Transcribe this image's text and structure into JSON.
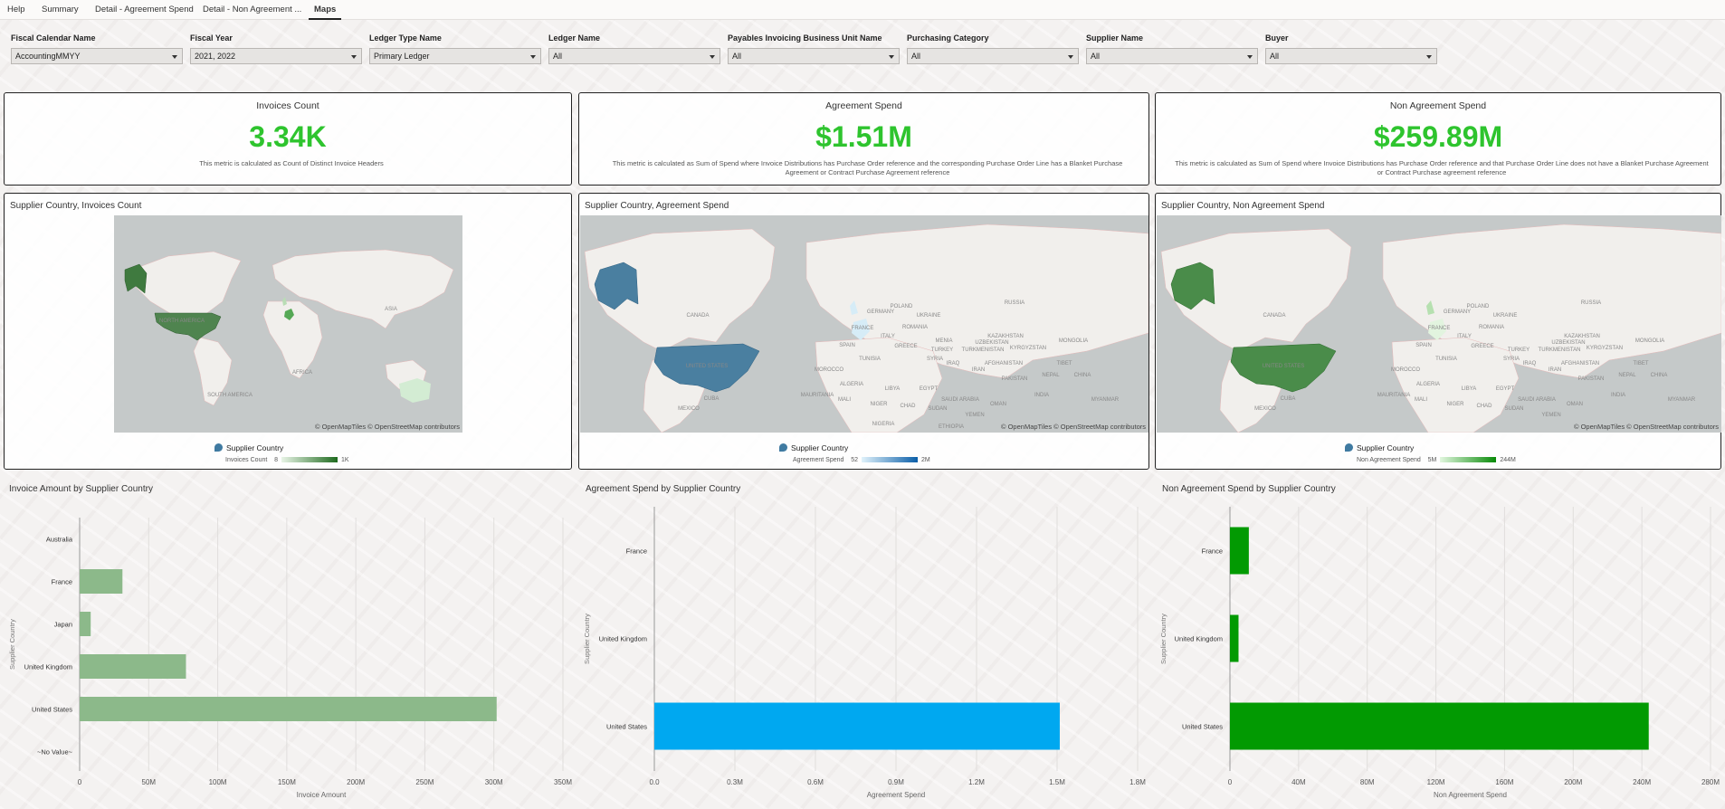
{
  "tabs": [
    {
      "label": "Help",
      "active": false
    },
    {
      "label": "Summary",
      "active": false
    },
    {
      "label": "Detail - Agreement Spend",
      "active": false
    },
    {
      "label": "Detail - Non Agreement ...",
      "active": false
    },
    {
      "label": "Maps",
      "active": true
    }
  ],
  "filters": [
    {
      "label": "Fiscal Calendar Name",
      "value": "AccountingMMYY"
    },
    {
      "label": "Fiscal Year",
      "value": "2021, 2022"
    },
    {
      "label": "Ledger Type Name",
      "value": "Primary Ledger"
    },
    {
      "label": "Ledger Name",
      "value": "All"
    },
    {
      "label": "Payables Invoicing Business Unit Name",
      "value": "All"
    },
    {
      "label": "Purchasing Category",
      "value": "All"
    },
    {
      "label": "Supplier Name",
      "value": "All"
    },
    {
      "label": "Buyer",
      "value": "All"
    }
  ],
  "metrics": [
    {
      "title": "Invoices Count",
      "value": "3.34K",
      "description": "This metric is calculated as Count of Distinct Invoice Headers"
    },
    {
      "title": "Agreement Spend",
      "value": "$1.51M",
      "description": "This metric is calculated as Sum of Spend where Invoice Distributions has Purchase Order reference and the corresponding Purchase Order Line has a Blanket Purchase Agreement or Contract Purchase Agreement reference"
    },
    {
      "title": "Non Agreement Spend",
      "value": "$259.89M",
      "description": "This metric is calculated as Sum of Spend where Invoice Distributions has Purchase Order reference and that Purchase Order Line does not have a Blanket Purchase Agreement or Contract Purchase agreement reference"
    }
  ],
  "maps": [
    {
      "title": "Supplier Country, Invoices Count",
      "attribution": "© OpenMapTiles  © OpenStreetMap contributors",
      "legend_label": "Supplier Country",
      "gradient_label": "Invoices Count",
      "gradient_min": "8",
      "gradient_max": "1K",
      "color": "#3f7a3f",
      "labels": [
        "NORTH AMERICA",
        "AFRICA",
        "ASIA",
        "SOUTH AMERICA"
      ]
    },
    {
      "title": "Supplier Country, Agreement Spend",
      "attribution": "© OpenMapTiles  © OpenStreetMap contributors",
      "legend_label": "Supplier Country",
      "gradient_label": "Agreement Spend",
      "gradient_min": "52",
      "gradient_max": "2M",
      "color": "#3f7aa1",
      "labels": [
        "CANADA",
        "RUSSIA",
        "UNITED STATES",
        "KAZAKHSTAN",
        "MONGOLIA",
        "CHINA",
        "ALGERIA",
        "LIBYA",
        "EGYPT",
        "MEXICO",
        "IRAN",
        "AFGHANISTAN",
        "PAKISTAN",
        "INDIA",
        "SAUDI ARABIA",
        "NIGER",
        "MALI",
        "CHAD",
        "SUDAN",
        "ETHIOPIA",
        "MOROCCO",
        "TURKEY",
        "FRANCE",
        "GERMANY",
        "POLAND",
        "UKRAINE",
        "SPAIN",
        "MAURITANIA",
        "NIGERIA",
        "YEMEN",
        "OMAN",
        "CUBA",
        "MYANMAR",
        "TIBET",
        "NEPAL",
        "IRAQ",
        "MENIA",
        "TURKMENISTAN",
        "UZBEKISTAN",
        "KYRGYZSTAN",
        "SYRIA",
        "ITALY",
        "GREECE",
        "ROMANIA",
        "TUNISIA"
      ]
    },
    {
      "title": "Supplier Country, Non Agreement Spend",
      "attribution": "© OpenMapTiles  © OpenStreetMap contributors",
      "legend_label": "Supplier Country",
      "gradient_label": "Non Agreement Spend",
      "gradient_min": "5M",
      "gradient_max": "244M",
      "color": "#3f8a3f",
      "labels": [
        "CANADA",
        "RUSSIA",
        "UNITED STATES",
        "KAZAKHSTAN",
        "MONGOLIA",
        "CHINA",
        "ALGERIA",
        "LIBYA",
        "EGYPT",
        "MEXICO",
        "IRAN",
        "AFGHANISTAN",
        "PAKISTAN",
        "INDIA",
        "SAUDI ARABIA",
        "NIGER",
        "MALI",
        "CHAD",
        "SUDAN",
        "MOROCCO",
        "TURKEY",
        "FRANCE",
        "GERMANY",
        "POLAND",
        "UKRAINE",
        "SPAIN",
        "MAURITANIA",
        "YEMEN",
        "OMAN",
        "CUBA",
        "MYANMAR",
        "TIBET",
        "NEPAL",
        "IRAQ",
        "TURKMENISTAN",
        "UZBEKISTAN",
        "KYRGYZSTAN",
        "SYRIA",
        "ITALY",
        "GREECE",
        "ROMANIA",
        "TUNISIA"
      ]
    }
  ],
  "chart_data": [
    {
      "type": "bar",
      "orientation": "horizontal",
      "title": "Invoice Amount by Supplier Country",
      "xlabel": "Invoice Amount",
      "ylabel": "Supplier Country",
      "categories": [
        "Australia",
        "France",
        "Japan",
        "United Kingdom",
        "United States",
        "~No Value~"
      ],
      "values": [
        0,
        31,
        8,
        77,
        302,
        0
      ],
      "unit": "M",
      "xlim": [
        0,
        350
      ],
      "xticks": [
        0,
        50,
        100,
        150,
        200,
        250,
        300,
        350
      ],
      "xtick_labels": [
        "0",
        "50M",
        "100M",
        "150M",
        "200M",
        "250M",
        "300M",
        "350M"
      ],
      "color": "#8cb98a"
    },
    {
      "type": "bar",
      "orientation": "horizontal",
      "title": "Agreement Spend by Supplier Country",
      "xlabel": "Agreement Spend",
      "ylabel": "Supplier Country",
      "categories": [
        "France",
        "United Kingdom",
        "United States"
      ],
      "values": [
        0,
        0,
        1.51
      ],
      "unit": "M",
      "xlim": [
        0,
        1.8
      ],
      "xticks": [
        0,
        0.3,
        0.6,
        0.9,
        1.2,
        1.5,
        1.8
      ],
      "xtick_labels": [
        "0.0",
        "0.3M",
        "0.6M",
        "0.9M",
        "1.2M",
        "1.5M",
        "1.8M"
      ],
      "color": "#00a8f0"
    },
    {
      "type": "bar",
      "orientation": "horizontal",
      "title": "Non Agreement Spend by Supplier Country",
      "xlabel": "Non Agreement Spend",
      "ylabel": "Supplier Country",
      "categories": [
        "France",
        "United Kingdom",
        "United States"
      ],
      "values": [
        11,
        5,
        244
      ],
      "unit": "M",
      "xlim": [
        0,
        280
      ],
      "xticks": [
        0,
        40,
        80,
        120,
        160,
        200,
        240,
        280
      ],
      "xtick_labels": [
        "0",
        "40M",
        "80M",
        "120M",
        "160M",
        "200M",
        "240M",
        "280M"
      ],
      "color": "#029a02"
    }
  ]
}
